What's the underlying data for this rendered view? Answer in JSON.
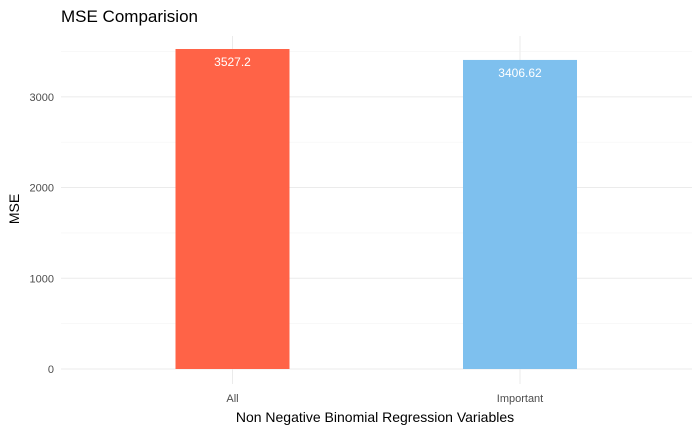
{
  "chart_data": {
    "type": "bar",
    "title": "MSE Comparision",
    "xlabel": "Non Negative Binomial Regression Variables",
    "ylabel": "MSE",
    "categories": [
      "All",
      "Important"
    ],
    "values": [
      3527.2,
      3406.62
    ],
    "data_labels": [
      "3527.2",
      "3406.62"
    ],
    "colors": [
      "#FF6347",
      "#7EC0EE"
    ],
    "ylim": [
      0,
      3527.2
    ],
    "yticks": [
      0,
      1000,
      2000,
      3000
    ],
    "ytick_labels": [
      "0",
      "1000",
      "2000",
      "3000"
    ],
    "grid": true,
    "legend": "none"
  }
}
